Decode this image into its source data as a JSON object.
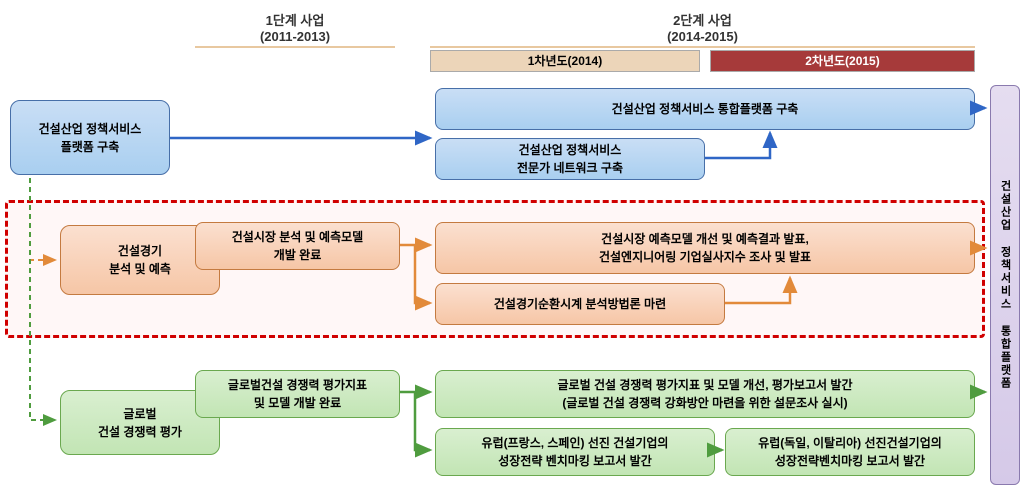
{
  "headers": {
    "phase1": "1단계 사업\n(2011-2013)",
    "phase2": "2단계 사업\n(2014-2015)",
    "year1": "1차년도(2014)",
    "year2": "2차년도(2015)"
  },
  "left_boxes": {
    "policy": "건설산업 정책서비스\n플랫폼 구축",
    "economy": "건설경기\n분석 및 예측",
    "global": "글로벌\n건설 경쟁력 평가"
  },
  "phase1_boxes": {
    "economy": "건설시장 분석 및 예측모델\n개발 완료",
    "global": "글로벌건설 경쟁력 평가지표\n및 모델 개발 완료"
  },
  "content_boxes": {
    "c1": "건설산업 정책서비스 통합플랫폼 구축",
    "c2": "건설산업 정책서비스\n전문가 네트워크 구축",
    "c3": "건설시장 예측모델 개선 및 예측결과 발표,\n건설엔지니어링 기업실사지수 조사 및 발표",
    "c4": "건설경기순환시계 분석방법론 마련",
    "c5": "글로벌 건설 경쟁력 평가지표 및 모델 개선, 평가보고서 발간\n(글로벌 건설 경쟁력 강화방안 마련을 위한 설문조사 실시)",
    "c6": "유럽(프랑스, 스페인) 선진 건설기업의\n성장전략 벤치마킹 보고서 발간",
    "c7": "유럽(독일, 이탈리아) 선진건설기업의\n성장전략벤치마킹 보고서 발간"
  },
  "right_bar": "건설산업 정책서비스 통합플랫폼",
  "colors": {
    "blue_arrow": "#2f66c6",
    "orange_arrow": "#e28a3a",
    "green_arrow": "#4f9c3f",
    "orange_dash": "#e28a3a",
    "green_dash": "#4f9c3f"
  }
}
